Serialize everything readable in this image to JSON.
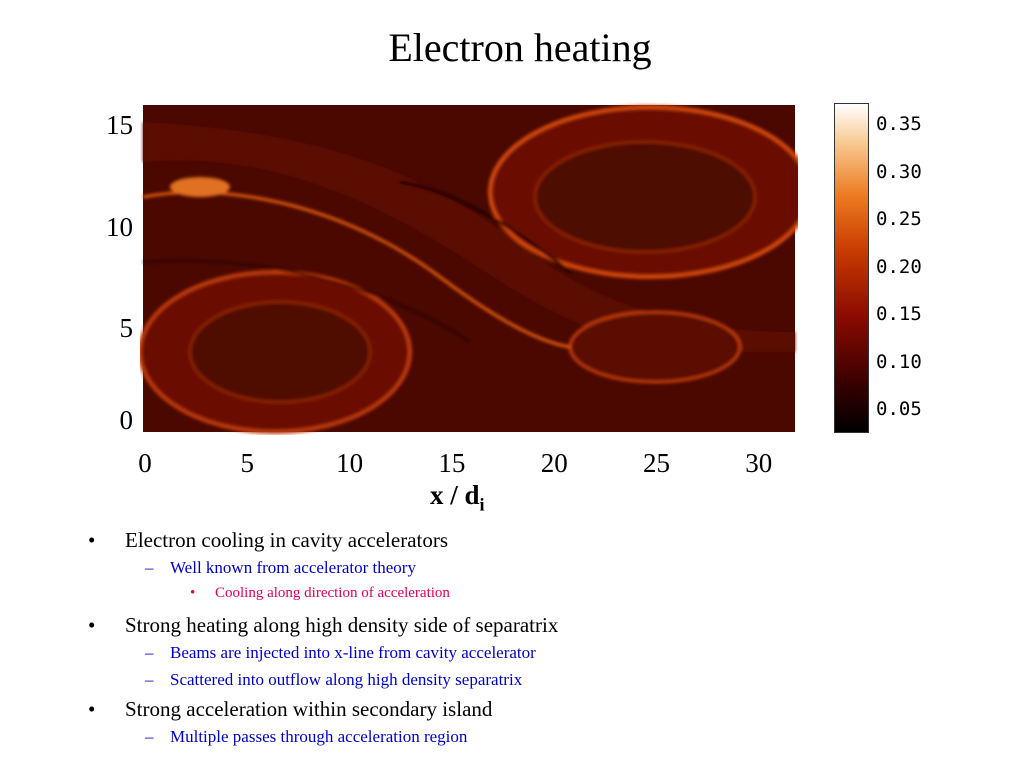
{
  "title": "Electron heating",
  "figure": {
    "y_ticks": [
      "0",
      "5",
      "10",
      "15"
    ],
    "x_ticks": [
      "0",
      "5",
      "10",
      "15",
      "20",
      "25",
      "30"
    ],
    "x_label": "x / d",
    "x_label_sub": "i",
    "colorbar_ticks": [
      "0.05",
      "0.10",
      "0.15",
      "0.20",
      "0.25",
      "0.30",
      "0.35"
    ]
  },
  "bullets": [
    {
      "text": "Electron cooling in cavity accelerators",
      "children": [
        {
          "text": "Well known from accelerator theory",
          "children": [
            {
              "text": "Cooling along direction of acceleration"
            }
          ]
        }
      ]
    },
    {
      "text": "Strong heating along high density side of separatrix",
      "children": [
        {
          "text": "Beams are injected into x-line from cavity accelerator"
        },
        {
          "text": "Scattered into outflow along high density separatrix"
        }
      ]
    },
    {
      "text": "Strong acceleration within secondary island",
      "children": [
        {
          "text": "Multiple passes through acceleration region"
        }
      ]
    }
  ]
}
